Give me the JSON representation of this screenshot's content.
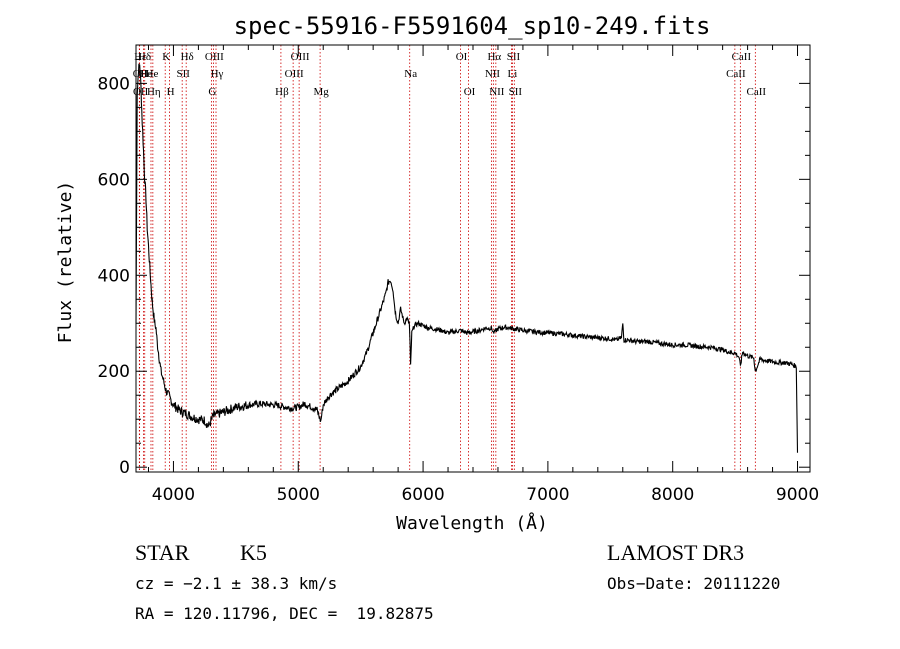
{
  "chart_data": {
    "type": "line",
    "title": "spec-55916-F5591604_sp10-249.fits",
    "xlabel": "Wavelength (Å)",
    "ylabel": "Flux (relative)",
    "xlim": [
      3700,
      9100
    ],
    "ylim": [
      -10,
      880
    ],
    "xticks": [
      4000,
      5000,
      6000,
      7000,
      8000,
      9000
    ],
    "yticks": [
      0,
      200,
      400,
      600,
      800
    ],
    "line_color": "#000000",
    "marker_color": "#cc0000",
    "series": [
      {
        "name": "flux",
        "x": [
          3700,
          3710,
          3720,
          3730,
          3740,
          3750,
          3760,
          3770,
          3780,
          3790,
          3800,
          3810,
          3820,
          3830,
          3840,
          3850,
          3860,
          3870,
          3880,
          3890,
          3900,
          3920,
          3940,
          3960,
          3980,
          4000,
          4050,
          4100,
          4150,
          4200,
          4250,
          4280,
          4300,
          4320,
          4350,
          4400,
          4500,
          4600,
          4700,
          4800,
          4850,
          4900,
          4950,
          5000,
          5050,
          5100,
          5150,
          5180,
          5200,
          5250,
          5300,
          5400,
          5500,
          5550,
          5600,
          5650,
          5700,
          5720,
          5740,
          5760,
          5770,
          5780,
          5790,
          5800,
          5820,
          5850,
          5870,
          5880,
          5890,
          5895,
          5900,
          5910,
          5930,
          5960,
          6000,
          6050,
          6100,
          6150,
          6200,
          6300,
          6350,
          6400,
          6450,
          6500,
          6550,
          6563,
          6600,
          6650,
          6700,
          6800,
          6900,
          7000,
          7100,
          7200,
          7300,
          7400,
          7500,
          7550,
          7590,
          7600,
          7610,
          7650,
          7700,
          7800,
          7900,
          8000,
          8100,
          8200,
          8300,
          8400,
          8450,
          8500,
          8530,
          8542,
          8560,
          8600,
          8650,
          8662,
          8700,
          8750,
          8800,
          8850,
          8900,
          8950,
          8990,
          9000
        ],
        "y": [
          300,
          780,
          830,
          840,
          790,
          720,
          660,
          600,
          560,
          500,
          460,
          420,
          380,
          345,
          320,
          300,
          290,
          260,
          240,
          220,
          200,
          180,
          160,
          150,
          140,
          130,
          118,
          112,
          105,
          100,
          98,
          85,
          95,
          108,
          110,
          115,
          125,
          130,
          132,
          130,
          128,
          125,
          123,
          125,
          132,
          126,
          120,
          95,
          130,
          150,
          160,
          180,
          210,
          240,
          280,
          320,
          360,
          385,
          390,
          370,
          340,
          320,
          310,
          300,
          330,
          300,
          310,
          305,
          300,
          260,
          210,
          280,
          295,
          300,
          295,
          290,
          288,
          285,
          280,
          285,
          280,
          282,
          285,
          290,
          290,
          280,
          288,
          292,
          290,
          285,
          282,
          280,
          278,
          275,
          272,
          270,
          268,
          265,
          270,
          300,
          265,
          265,
          262,
          262,
          258,
          255,
          255,
          252,
          250,
          245,
          240,
          238,
          230,
          210,
          240,
          232,
          228,
          200,
          225,
          222,
          220,
          218,
          218,
          215,
          210,
          30
        ]
      }
    ],
    "line_markers": [
      {
        "name": "Hε",
        "x": 3727,
        "row": 0
      },
      {
        "name": "OII",
        "x": 3727,
        "row": 1
      },
      {
        "name": "OII",
        "x": 3729,
        "row": 2
      },
      {
        "name": "Hδ",
        "x": 3760,
        "row": 0
      },
      {
        "name": "He",
        "x": 3770,
        "row": 1
      },
      {
        "name": "Hη",
        "x": 3835,
        "row": 2
      },
      {
        "name": "He",
        "x": 3820,
        "row": 1
      },
      {
        "name": "K",
        "x": 3934,
        "row": 0
      },
      {
        "name": "H",
        "x": 3969,
        "row": 2
      },
      {
        "name": "SII",
        "x": 4070,
        "row": 1
      },
      {
        "name": "Hδ",
        "x": 4102,
        "row": 0
      },
      {
        "name": "OIII",
        "x": 4320,
        "row": 0
      },
      {
        "name": "Hγ",
        "x": 4341,
        "row": 1
      },
      {
        "name": "G",
        "x": 4304,
        "row": 2
      },
      {
        "name": "Hβ",
        "x": 4861,
        "row": 2
      },
      {
        "name": "OIII",
        "x": 4959,
        "row": 1
      },
      {
        "name": "OIII",
        "x": 5007,
        "row": 0
      },
      {
        "name": "Mg",
        "x": 5175,
        "row": 2
      },
      {
        "name": "Na",
        "x": 5893,
        "row": 1
      },
      {
        "name": "OI",
        "x": 6300,
        "row": 0
      },
      {
        "name": "OI",
        "x": 6364,
        "row": 2
      },
      {
        "name": "Hα",
        "x": 6563,
        "row": 0
      },
      {
        "name": "NII",
        "x": 6548,
        "row": 1
      },
      {
        "name": "NII",
        "x": 6583,
        "row": 2
      },
      {
        "name": "SII",
        "x": 6716,
        "row": 0
      },
      {
        "name": "Li",
        "x": 6708,
        "row": 1
      },
      {
        "name": "SII",
        "x": 6731,
        "row": 2
      },
      {
        "name": "CaII",
        "x": 8542,
        "row": 0
      },
      {
        "name": "CaII",
        "x": 8498,
        "row": 1
      },
      {
        "name": "CaII",
        "x": 8662,
        "row": 2
      }
    ]
  },
  "footer": {
    "object_class": "STAR",
    "subclass": "K5",
    "survey": "LAMOST DR3",
    "redshift": "cz = −2.1 ± 38.3 km/s",
    "obs_date": "Obs−Date: 20111220",
    "coordinates": "RA = 120.11796, DEC =  19.82875"
  }
}
